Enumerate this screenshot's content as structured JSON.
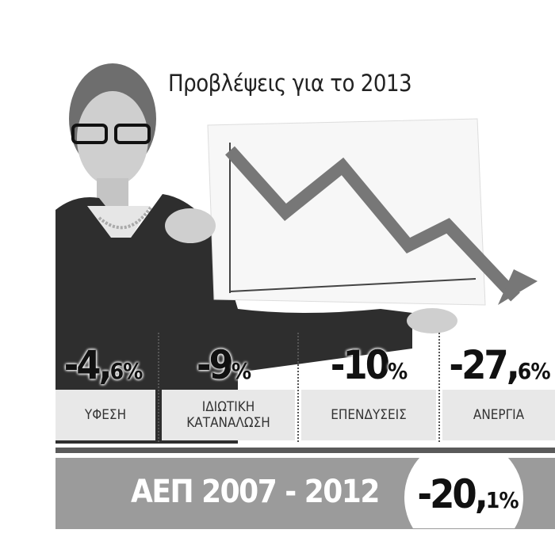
{
  "header": {
    "title": "Προβλέψεις για το 2013"
  },
  "stats": [
    {
      "value": "-4,6%",
      "label": "ΥΦΕΣΗ"
    },
    {
      "value": "-9%",
      "label": "ΙΔΙΩΤΙΚΗ ΚΑΤΑΝΑΛΩΣΗ"
    },
    {
      "value": "-10%",
      "label": "ΕΠΕΝΔΥΣΕΙΣ"
    },
    {
      "value": "-27,6%",
      "label": "ΑΝΕΡΓΙΑ"
    }
  ],
  "footer": {
    "label": "ΑΕΠ 2007 - 2012",
    "value": "-20,1%"
  }
}
